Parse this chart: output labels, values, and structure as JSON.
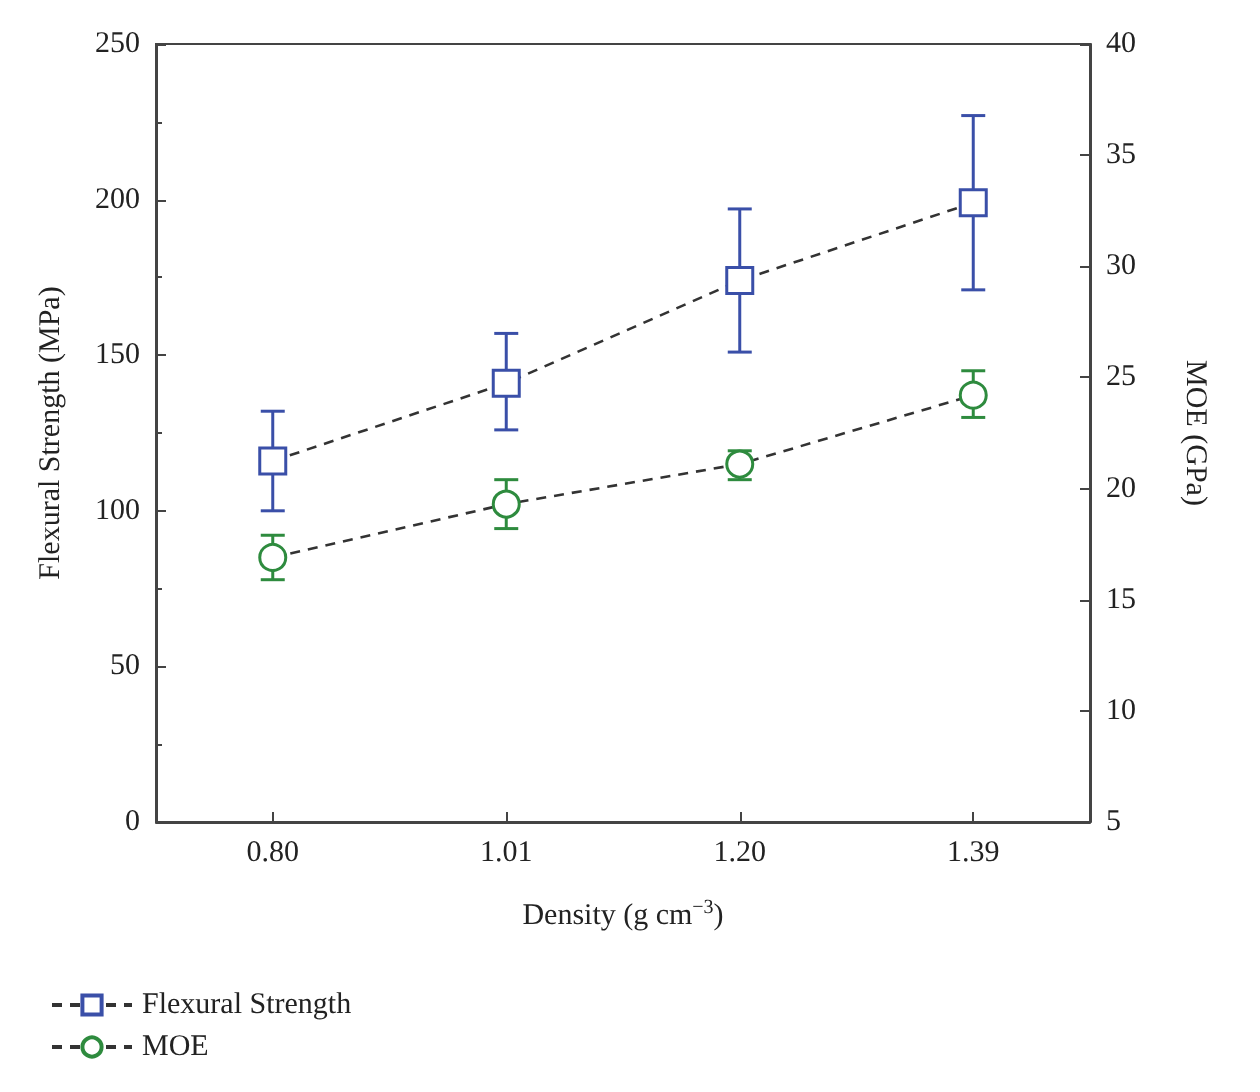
{
  "chart_data": {
    "type": "line",
    "xlabel": "Density (g cm$^{−3}$)",
    "ylabel": "Flexural Strength (MPa)",
    "y2label": "MOE (GPa)",
    "categories": [
      "0.80",
      "1.01",
      "1.20",
      "1.39"
    ],
    "series": [
      {
        "name": "Flexural Strength",
        "color": "#3a4fa8",
        "marker": "square",
        "values": [
          116,
          141,
          174,
          199
        ],
        "errors": [
          [
            100,
            132
          ],
          [
            126,
            157
          ],
          [
            151,
            197
          ],
          [
            171,
            227
          ]
        ]
      },
      {
        "name": "MOE",
        "color": "#2e8b3e",
        "marker": "circle",
        "axis": "y2",
        "values": [
          16.9,
          19.3,
          21.1,
          24.2
        ],
        "errors": [
          [
            15.9,
            17.9
          ],
          [
            18.2,
            20.4
          ],
          [
            20.4,
            21.7
          ],
          [
            23.2,
            25.3
          ]
        ]
      }
    ],
    "ylim": [
      0,
      250
    ],
    "yticks": [
      0,
      50,
      100,
      150,
      200,
      250
    ],
    "y2lim": [
      5,
      40
    ],
    "y2ticks": [
      5,
      10,
      15,
      20,
      25,
      30,
      35,
      40
    ],
    "line_style": "dashed",
    "legend": "bottom left",
    "grid": false
  }
}
